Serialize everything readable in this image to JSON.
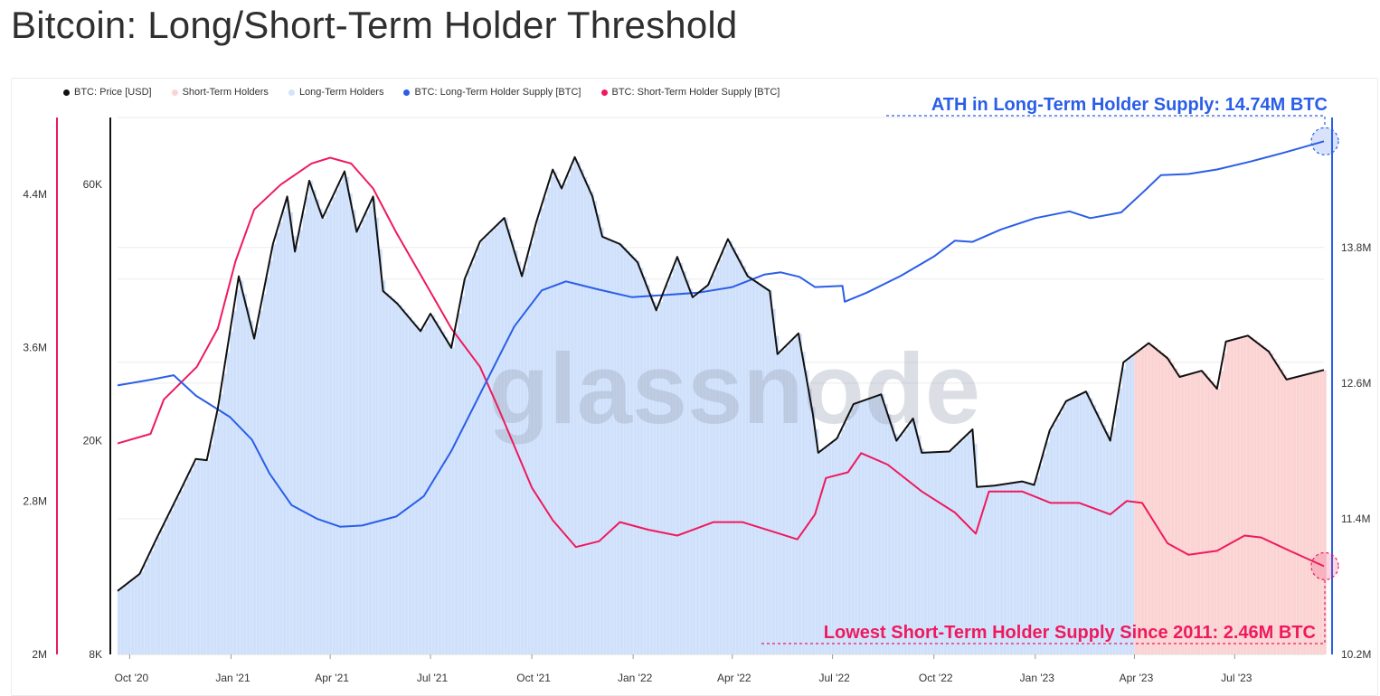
{
  "title": "Bitcoin: Long/Short-Term Holder Threshold",
  "watermark": "glassnode",
  "legend": [
    {
      "label": "BTC: Price [USD]",
      "color": "#111111"
    },
    {
      "label": "Short-Term Holders",
      "color": "#fbd5d5"
    },
    {
      "label": "Long-Term Holders",
      "color": "#d3e3fb"
    },
    {
      "label": "BTC: Long-Term Holder Supply [BTC]",
      "color": "#2a5ee8"
    },
    {
      "label": "BTC: Short-Term Holder Supply [BTC]",
      "color": "#ee1a5d"
    }
  ],
  "annotations": {
    "lth": "ATH in Long-Term Holder Supply: 14.74M BTC",
    "sth": "Lowest Short-Term Holder Supply Since 2011: 2.46M BTC"
  },
  "chart_data": {
    "type": "line",
    "title": "Bitcoin: Long/Short-Term Holder Threshold",
    "x_range": [
      "2020-09-20",
      "2023-09-20"
    ],
    "x_ticks": [
      "Oct '20",
      "Jan '21",
      "Apr '21",
      "Jul '21",
      "Oct '21",
      "Jan '22",
      "Apr '22",
      "Jul '22",
      "Oct '22",
      "Jan '23",
      "Apr '23",
      "Jul '23"
    ],
    "axes": {
      "price": {
        "scale": "log",
        "range": [
          8000,
          80000
        ],
        "ticks": [
          "8K",
          "20K",
          "60K"
        ]
      },
      "sth_supply": {
        "range": [
          2000000,
          4800000
        ],
        "ticks": [
          "2M",
          "2.8M",
          "3.6M",
          "4.4M"
        ]
      },
      "lth_supply": {
        "range": [
          10200000,
          14950000
        ],
        "ticks": [
          "10.2M",
          "11.4M",
          "12.6M",
          "13.8M"
        ]
      }
    },
    "holder_regime": [
      {
        "name": "Long-Term Holders",
        "from": "2020-09-20",
        "to": "2023-03-31"
      },
      {
        "name": "Short-Term Holders",
        "from": "2023-04-01",
        "to": "2023-09-20"
      }
    ],
    "series": [
      {
        "name": "BTC: Price [USD]",
        "color": "#111111",
        "axis": "price",
        "points": [
          [
            "2020-09-20",
            10500
          ],
          [
            "2020-10-10",
            11300
          ],
          [
            "2020-10-25",
            13100
          ],
          [
            "2020-11-15",
            16000
          ],
          [
            "2020-11-30",
            18500
          ],
          [
            "2020-12-10",
            18400
          ],
          [
            "2020-12-20",
            23000
          ],
          [
            "2021-01-08",
            40500
          ],
          [
            "2021-01-22",
            31000
          ],
          [
            "2021-02-08",
            46500
          ],
          [
            "2021-02-21",
            57000
          ],
          [
            "2021-02-28",
            45000
          ],
          [
            "2021-03-13",
            61000
          ],
          [
            "2021-03-25",
            52000
          ],
          [
            "2021-04-14",
            63500
          ],
          [
            "2021-04-25",
            49000
          ],
          [
            "2021-05-10",
            57000
          ],
          [
            "2021-05-19",
            38000
          ],
          [
            "2021-06-01",
            36000
          ],
          [
            "2021-06-22",
            32000
          ],
          [
            "2021-07-01",
            34500
          ],
          [
            "2021-07-20",
            29800
          ],
          [
            "2021-08-01",
            40000
          ],
          [
            "2021-08-15",
            47000
          ],
          [
            "2021-09-06",
            52000
          ],
          [
            "2021-09-22",
            40500
          ],
          [
            "2021-10-05",
            51000
          ],
          [
            "2021-10-20",
            64000
          ],
          [
            "2021-10-28",
            59000
          ],
          [
            "2021-11-09",
            67500
          ],
          [
            "2021-11-25",
            57000
          ],
          [
            "2021-12-04",
            48000
          ],
          [
            "2021-12-20",
            46500
          ],
          [
            "2022-01-05",
            43000
          ],
          [
            "2022-01-22",
            35000
          ],
          [
            "2022-02-10",
            44000
          ],
          [
            "2022-02-24",
            37000
          ],
          [
            "2022-03-10",
            39000
          ],
          [
            "2022-03-28",
            47500
          ],
          [
            "2022-04-15",
            40500
          ],
          [
            "2022-05-05",
            38000
          ],
          [
            "2022-05-12",
            29000
          ],
          [
            "2022-05-31",
            31700
          ],
          [
            "2022-06-13",
            22500
          ],
          [
            "2022-06-18",
            19000
          ],
          [
            "2022-07-05",
            20200
          ],
          [
            "2022-07-20",
            23400
          ],
          [
            "2022-08-14",
            24400
          ],
          [
            "2022-08-28",
            20000
          ],
          [
            "2022-09-12",
            22000
          ],
          [
            "2022-09-20",
            19000
          ],
          [
            "2022-10-15",
            19100
          ],
          [
            "2022-11-05",
            21000
          ],
          [
            "2022-11-09",
            16400
          ],
          [
            "2022-11-25",
            16500
          ],
          [
            "2022-12-20",
            16800
          ],
          [
            "2022-12-31",
            16550
          ],
          [
            "2023-01-14",
            20900
          ],
          [
            "2023-01-29",
            23700
          ],
          [
            "2023-02-16",
            24700
          ],
          [
            "2023-03-10",
            20000
          ],
          [
            "2023-03-22",
            28000
          ],
          [
            "2023-04-14",
            30400
          ],
          [
            "2023-05-01",
            28500
          ],
          [
            "2023-05-12",
            26300
          ],
          [
            "2023-06-01",
            27000
          ],
          [
            "2023-06-15",
            25000
          ],
          [
            "2023-06-23",
            30600
          ],
          [
            "2023-07-13",
            31400
          ],
          [
            "2023-08-01",
            29300
          ],
          [
            "2023-08-17",
            26000
          ],
          [
            "2023-09-20",
            27100
          ]
        ]
      },
      {
        "name": "BTC: Short-Term Holder Supply [BTC]",
        "color": "#ee1a5d",
        "axis": "sth_supply",
        "points": [
          [
            "2020-09-20",
            3100000
          ],
          [
            "2020-10-20",
            3150000
          ],
          [
            "2020-11-01",
            3330000
          ],
          [
            "2020-12-01",
            3500000
          ],
          [
            "2020-12-20",
            3700000
          ],
          [
            "2021-01-05",
            4050000
          ],
          [
            "2021-01-22",
            4320000
          ],
          [
            "2021-02-15",
            4450000
          ],
          [
            "2021-03-15",
            4560000
          ],
          [
            "2021-04-01",
            4590000
          ],
          [
            "2021-04-20",
            4560000
          ],
          [
            "2021-05-10",
            4430000
          ],
          [
            "2021-05-31",
            4200000
          ],
          [
            "2021-06-30",
            3900000
          ],
          [
            "2021-07-20",
            3700000
          ],
          [
            "2021-08-15",
            3500000
          ],
          [
            "2021-09-01",
            3280000
          ],
          [
            "2021-10-01",
            2870000
          ],
          [
            "2021-10-20",
            2700000
          ],
          [
            "2021-11-10",
            2560000
          ],
          [
            "2021-12-01",
            2590000
          ],
          [
            "2021-12-20",
            2690000
          ],
          [
            "2022-01-15",
            2650000
          ],
          [
            "2022-02-10",
            2620000
          ],
          [
            "2022-03-15",
            2690000
          ],
          [
            "2022-04-10",
            2690000
          ],
          [
            "2022-05-08",
            2640000
          ],
          [
            "2022-05-30",
            2600000
          ],
          [
            "2022-06-15",
            2730000
          ],
          [
            "2022-06-25",
            2920000
          ],
          [
            "2022-07-15",
            2950000
          ],
          [
            "2022-07-27",
            3050000
          ],
          [
            "2022-08-20",
            2990000
          ],
          [
            "2022-09-20",
            2850000
          ],
          [
            "2022-10-20",
            2740000
          ],
          [
            "2022-11-08",
            2630000
          ],
          [
            "2022-11-20",
            2850000
          ],
          [
            "2022-12-20",
            2850000
          ],
          [
            "2023-01-15",
            2790000
          ],
          [
            "2023-02-10",
            2790000
          ],
          [
            "2023-03-10",
            2730000
          ],
          [
            "2023-03-25",
            2800000
          ],
          [
            "2023-04-08",
            2790000
          ],
          [
            "2023-05-01",
            2580000
          ],
          [
            "2023-05-20",
            2520000
          ],
          [
            "2023-06-15",
            2540000
          ],
          [
            "2023-07-10",
            2620000
          ],
          [
            "2023-07-25",
            2610000
          ],
          [
            "2023-08-20",
            2540000
          ],
          [
            "2023-09-20",
            2460000
          ]
        ]
      },
      {
        "name": "BTC: Long-Term Holder Supply [BTC]",
        "color": "#2a5ee8",
        "axis": "lth_supply",
        "points": [
          [
            "2020-09-20",
            12580000
          ],
          [
            "2020-10-20",
            12630000
          ],
          [
            "2020-11-10",
            12670000
          ],
          [
            "2020-11-30",
            12490000
          ],
          [
            "2020-12-31",
            12300000
          ],
          [
            "2021-01-20",
            12100000
          ],
          [
            "2021-02-05",
            11800000
          ],
          [
            "2021-02-25",
            11520000
          ],
          [
            "2021-03-20",
            11400000
          ],
          [
            "2021-04-10",
            11330000
          ],
          [
            "2021-04-30",
            11340000
          ],
          [
            "2021-05-31",
            11420000
          ],
          [
            "2021-06-25",
            11600000
          ],
          [
            "2021-07-20",
            12000000
          ],
          [
            "2021-08-20",
            12600000
          ],
          [
            "2021-09-15",
            13100000
          ],
          [
            "2021-10-10",
            13420000
          ],
          [
            "2021-11-01",
            13500000
          ],
          [
            "2021-11-30",
            13430000
          ],
          [
            "2021-12-31",
            13360000
          ],
          [
            "2022-01-31",
            13380000
          ],
          [
            "2022-03-01",
            13400000
          ],
          [
            "2022-04-01",
            13450000
          ],
          [
            "2022-04-30",
            13560000
          ],
          [
            "2022-05-15",
            13580000
          ],
          [
            "2022-06-01",
            13540000
          ],
          [
            "2022-06-15",
            13450000
          ],
          [
            "2022-07-10",
            13460000
          ],
          [
            "2022-07-12",
            13320000
          ],
          [
            "2022-08-01",
            13400000
          ],
          [
            "2022-09-01",
            13550000
          ],
          [
            "2022-10-01",
            13720000
          ],
          [
            "2022-10-20",
            13860000
          ],
          [
            "2022-11-05",
            13850000
          ],
          [
            "2022-12-01",
            13960000
          ],
          [
            "2023-01-01",
            14060000
          ],
          [
            "2023-02-01",
            14120000
          ],
          [
            "2023-02-20",
            14060000
          ],
          [
            "2023-03-20",
            14110000
          ],
          [
            "2023-04-10",
            14300000
          ],
          [
            "2023-04-25",
            14440000
          ],
          [
            "2023-05-20",
            14450000
          ],
          [
            "2023-06-15",
            14490000
          ],
          [
            "2023-07-15",
            14560000
          ],
          [
            "2023-08-15",
            14640000
          ],
          [
            "2023-09-20",
            14740000
          ]
        ]
      }
    ]
  }
}
